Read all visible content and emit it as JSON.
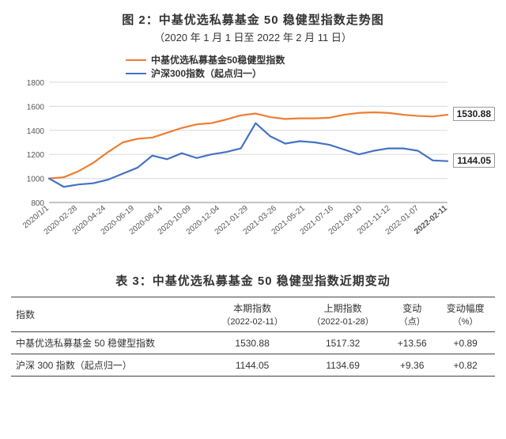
{
  "figure": {
    "title": "图 2：中基优选私募基金 50 稳健型指数走势图",
    "subtitle": "（2020 年 1 月 1 日至 2022 年 2 月 11 日）",
    "background_color": "#ffffff",
    "grid_color": "#d9d9d9",
    "axis_color": "#555555",
    "title_fontsize": 15,
    "label_fontsize": 12,
    "tick_fontsize": 10,
    "ylim": [
      800,
      1800
    ],
    "ytick_step": 200,
    "x_categories": [
      "2020/1/1",
      "2020-02-28",
      "2020-04-24",
      "2020-06-19",
      "2020-08-14",
      "2020-10-09",
      "2020-12-04",
      "2021-01-29",
      "2021-03-26",
      "2021-05-21",
      "2021-07-16",
      "2021-09-10",
      "2021-11-12",
      "2022-01-07",
      "2022-02-11"
    ],
    "series": [
      {
        "name": "中基优选私募基金50稳健型指数",
        "color": "#ed7d31",
        "line_width": 2.2,
        "end_value": 1530.88,
        "values": [
          1000,
          1010,
          1060,
          1130,
          1220,
          1300,
          1330,
          1340,
          1380,
          1420,
          1450,
          1460,
          1490,
          1525,
          1540,
          1510,
          1495,
          1500,
          1500,
          1505,
          1530,
          1545,
          1550,
          1545,
          1530,
          1520,
          1515,
          1530
        ]
      },
      {
        "name": "沪深300指数（起点归一）",
        "color": "#4472c4",
        "line_width": 2.2,
        "end_value": 1144.05,
        "values": [
          1000,
          930,
          950,
          960,
          990,
          1040,
          1090,
          1190,
          1160,
          1210,
          1170,
          1200,
          1220,
          1250,
          1460,
          1350,
          1290,
          1310,
          1300,
          1280,
          1240,
          1200,
          1230,
          1250,
          1250,
          1230,
          1150,
          1144
        ]
      }
    ]
  },
  "table": {
    "title": "表 3：中基优选私募基金 50 稳健型指数近期变动",
    "columns": [
      {
        "l1": "指数",
        "l2": ""
      },
      {
        "l1": "本期指数",
        "l2": "（2022-02-11）"
      },
      {
        "l1": "上期指数",
        "l2": "（2022-01-28）"
      },
      {
        "l1": "变动",
        "l2": "（点）"
      },
      {
        "l1": "变动幅度",
        "l2": "（%）"
      }
    ],
    "rows": [
      [
        "中基优选私募基金 50 稳健型指数",
        "1530.88",
        "1517.32",
        "+13.56",
        "+0.89"
      ],
      [
        "沪深 300 指数（起点归一）",
        "1144.05",
        "1134.69",
        "+9.36",
        "+0.82"
      ]
    ]
  }
}
